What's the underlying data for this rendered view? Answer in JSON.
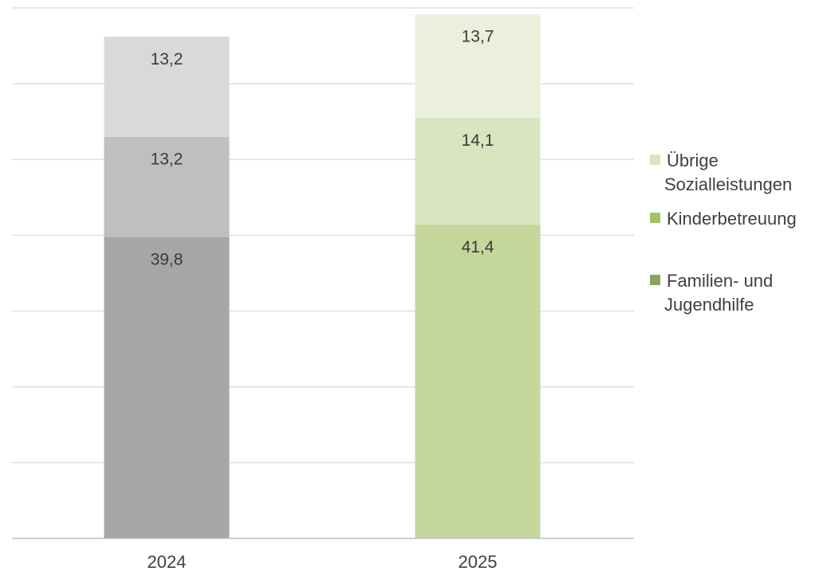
{
  "chart_data": {
    "type": "bar",
    "stacked": true,
    "categories": [
      "2024",
      "2025"
    ],
    "series": [
      {
        "name": "Familien- und Jugendhilfe",
        "values": [
          39.8,
          41.4
        ],
        "labels": [
          "39,8",
          "41,4"
        ],
        "colors": [
          "#a6a6a6",
          "#c5d69b"
        ],
        "legend_color": "#8aa35a",
        "legend_lines": [
          "Familien- und",
          "Jugendhilfe"
        ]
      },
      {
        "name": "Kinderbetreuung",
        "values": [
          13.2,
          14.1
        ],
        "labels": [
          "13,2",
          "14,1"
        ],
        "colors": [
          "#bfbfbf",
          "#d9e5bf"
        ],
        "legend_color": "#a4c068",
        "legend_lines": [
          "Kinderbetreuung"
        ]
      },
      {
        "name": "Übrige Sozialleistungen",
        "values": [
          13.2,
          13.7
        ],
        "labels": [
          "13,2",
          "13,7"
        ],
        "colors": [
          "#d9d9d9",
          "#ebf0dd"
        ],
        "legend_color": "#d8e6bf",
        "legend_lines": [
          "Übrige",
          "Sozialleistungen"
        ]
      }
    ],
    "ylim": [
      0,
      70
    ],
    "ytick_step": 10,
    "grid": true,
    "legend": "right",
    "gridline_color": "#d9d9d9",
    "axis_color": "#bfbfbf"
  }
}
